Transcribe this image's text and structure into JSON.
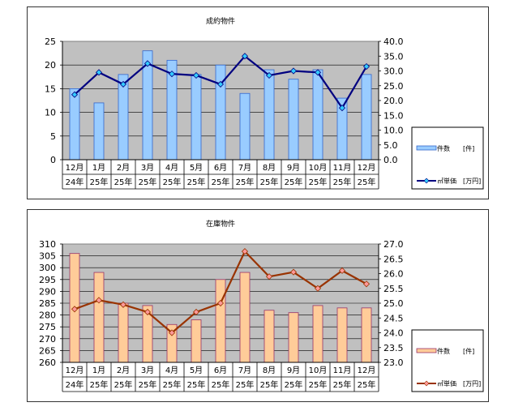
{
  "chart_data": [
    {
      "type": "bar",
      "title": "成約物件",
      "categories": [
        [
          "12月",
          "24年"
        ],
        [
          "1月",
          "25年"
        ],
        [
          "2月",
          "25年"
        ],
        [
          "3月",
          "25年"
        ],
        [
          "4月",
          "25年"
        ],
        [
          "5月",
          "25年"
        ],
        [
          "6月",
          "25年"
        ],
        [
          "7月",
          "25年"
        ],
        [
          "8月",
          "25年"
        ],
        [
          "9月",
          "25年"
        ],
        [
          "10月",
          "25年"
        ],
        [
          "11月",
          "25年"
        ],
        [
          "12月",
          "25年"
        ]
      ],
      "series": [
        {
          "name": "件数",
          "unit": "[件]",
          "kind": "bar",
          "axis": "left",
          "color": "#99ccff",
          "stroke": "#3366cc",
          "values": [
            15,
            12,
            18,
            23,
            21,
            18,
            20,
            14,
            19,
            17,
            19,
            13,
            18
          ]
        },
        {
          "name": "㎡単価",
          "unit": "[万円]",
          "kind": "line",
          "axis": "right",
          "color": "#000080",
          "marker": "#33ccff",
          "values": [
            22.0,
            29.5,
            25.5,
            32.5,
            29.0,
            28.5,
            25.5,
            35.0,
            28.5,
            30.0,
            29.5,
            17.5,
            31.5
          ]
        }
      ],
      "ylim_left": [
        0,
        25
      ],
      "yticks_left": [
        "0",
        "5",
        "10",
        "15",
        "20",
        "25"
      ],
      "ylim_right": [
        0,
        40
      ],
      "yticks_right": [
        "0.0",
        "5.0",
        "10.0",
        "15.0",
        "20.0",
        "25.0",
        "30.0",
        "35.0",
        "40.0"
      ],
      "legend": "right"
    },
    {
      "type": "bar",
      "title": "在庫物件",
      "categories": [
        [
          "12月",
          "24年"
        ],
        [
          "1月",
          "25年"
        ],
        [
          "2月",
          "25年"
        ],
        [
          "3月",
          "25年"
        ],
        [
          "4月",
          "25年"
        ],
        [
          "5月",
          "25年"
        ],
        [
          "6月",
          "25年"
        ],
        [
          "7月",
          "25年"
        ],
        [
          "8月",
          "25年"
        ],
        [
          "9月",
          "25年"
        ],
        [
          "10月",
          "25年"
        ],
        [
          "11月",
          "25年"
        ],
        [
          "12月",
          "25年"
        ]
      ],
      "series": [
        {
          "name": "件数",
          "unit": "[件]",
          "kind": "bar",
          "axis": "left",
          "color": "#ffcc99",
          "stroke": "#993366",
          "values": [
            306,
            298,
            285,
            284,
            276,
            278,
            295,
            298,
            282,
            281,
            284,
            283,
            283
          ]
        },
        {
          "name": "㎡単価",
          "unit": "[万円]",
          "kind": "line",
          "axis": "right",
          "color": "#993300",
          "marker": "#ff9999",
          "values": [
            24.8,
            25.1,
            24.95,
            24.7,
            24.0,
            24.7,
            25.0,
            26.75,
            25.9,
            26.05,
            25.5,
            26.1,
            25.65
          ]
        }
      ],
      "ylim_left": [
        260,
        310
      ],
      "yticks_left": [
        "260",
        "265",
        "270",
        "275",
        "280",
        "285",
        "290",
        "295",
        "300",
        "305",
        "310"
      ],
      "ylim_right": [
        23,
        27
      ],
      "yticks_right": [
        "23.0",
        "23.5",
        "24.0",
        "24.5",
        "25.0",
        "25.5",
        "26.0",
        "26.5",
        "27.0"
      ],
      "legend": "right"
    }
  ]
}
